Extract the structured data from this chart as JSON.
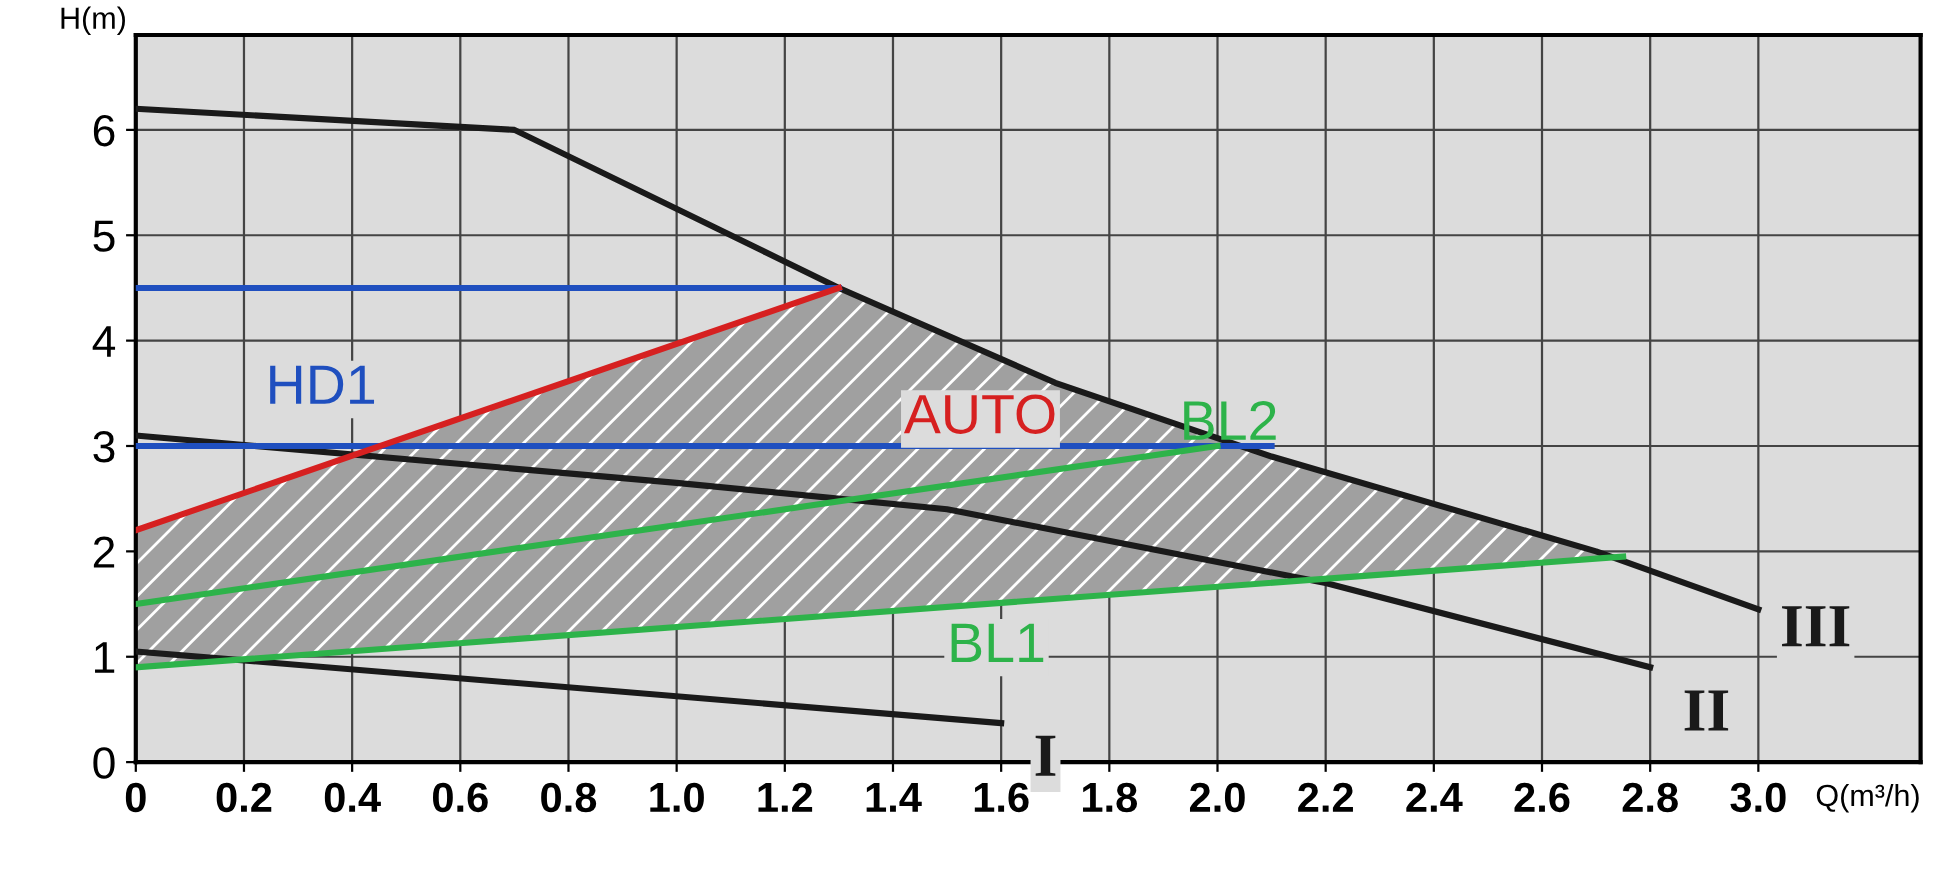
{
  "chart_data": {
    "type": "line",
    "xlabel": "Q(m³/h)",
    "ylabel": "H(m)",
    "xlim": [
      0,
      3.3
    ],
    "ylim": [
      0,
      6.9
    ],
    "xticks": [
      0,
      0.2,
      0.4,
      0.6,
      0.8,
      {
        "value": 1.0,
        "label": "1.0"
      },
      1.2,
      1.4,
      1.6,
      1.8,
      {
        "value": 2.0,
        "label": "2.0"
      },
      2.2,
      2.4,
      2.6,
      2.8,
      {
        "value": 3.0,
        "label": "3.0"
      }
    ],
    "yticks": [
      0,
      1,
      2,
      3,
      4,
      5,
      6
    ],
    "grid": true,
    "marker": "none",
    "line_style": "solid",
    "series": [
      {
        "name": "III",
        "color": "#1a1a1a",
        "x": [
          0,
          0.7,
          1.3,
          1.7,
          2.1,
          2.7,
          3.0
        ],
        "values": [
          6.2,
          6.0,
          4.5,
          3.6,
          2.9,
          2.0,
          1.45
        ]
      },
      {
        "name": "II",
        "color": "#1a1a1a",
        "x": [
          0,
          1.0,
          1.5,
          2.2,
          2.8
        ],
        "values": [
          3.1,
          2.65,
          2.4,
          1.7,
          0.9
        ]
      },
      {
        "name": "I",
        "color": "#1a1a1a",
        "x": [
          0,
          1.6
        ],
        "values": [
          1.05,
          0.37
        ]
      },
      {
        "name": "HD1",
        "color": "#1f4fbf",
        "x": [
          0,
          2.1
        ],
        "values": [
          3.0,
          3.0
        ]
      },
      {
        "color": "#1f4fbf",
        "x": [
          0,
          1.3
        ],
        "values": [
          4.5,
          4.5
        ]
      },
      {
        "name": "AUTO",
        "color": "#d62020",
        "x": [
          0,
          1.3
        ],
        "values": [
          2.2,
          4.5
        ]
      },
      {
        "name": "BL2",
        "color": "#2db34a",
        "x": [
          0,
          2.0
        ],
        "values": [
          1.5,
          3.0
        ]
      },
      {
        "name": "BL1",
        "color": "#2db34a",
        "x": [
          0,
          2.75
        ],
        "values": [
          0.9,
          1.95
        ]
      }
    ]
  }
}
